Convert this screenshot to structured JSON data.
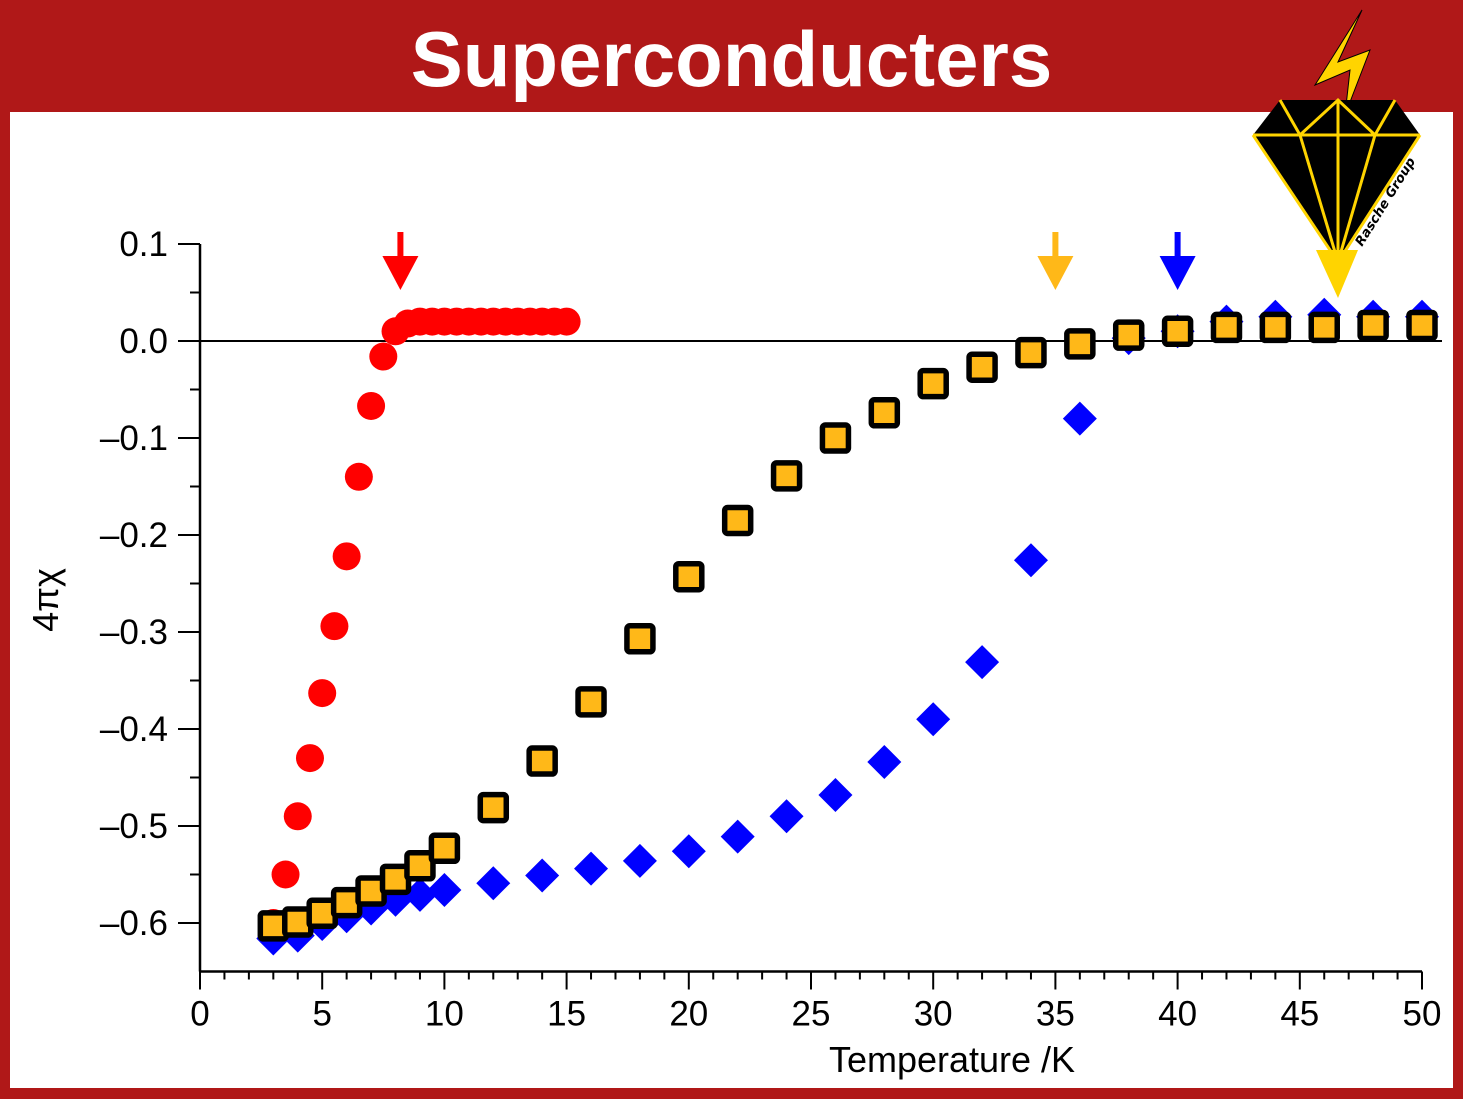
{
  "header": {
    "title": "Superconducters"
  },
  "logo": {
    "text": "Rasche Group",
    "icon": "lightning-diamond-icon"
  },
  "colors": {
    "frame": "#b01818",
    "red": "#ff0000",
    "blue": "#0000ff",
    "orange": "#ffb818",
    "black": "#000000",
    "logo_yellow": "#ffd400"
  },
  "chart_data": {
    "type": "scatter",
    "xlabel": "Temperature /K",
    "ylabel": "4πχ",
    "xlim": [
      0,
      50
    ],
    "ylim": [
      -0.65,
      0.1
    ],
    "xticks": [
      0,
      5,
      10,
      15,
      20,
      25,
      30,
      35,
      40,
      45,
      50
    ],
    "xtick_labels": [
      "0",
      "5",
      "10",
      "15",
      "20",
      "25",
      "30",
      "35",
      "40",
      "45",
      "50"
    ],
    "yticks": [
      0.1,
      0.0,
      -0.1,
      -0.2,
      -0.3,
      -0.4,
      -0.5,
      -0.6
    ],
    "ytick_labels": [
      "0.1",
      "0.0",
      "–0.1",
      "–0.2",
      "–0.3",
      "–0.4",
      "–0.5",
      "–0.6"
    ],
    "reference_line_y": 0,
    "series": [
      {
        "marker": "circle",
        "color": "#ff0000",
        "x": [
          3,
          3.5,
          4,
          4.5,
          5,
          5.5,
          6,
          6.5,
          7,
          7.5,
          8,
          8.5,
          9,
          9.5,
          10,
          10.5,
          11,
          11.5,
          12,
          12.5,
          13,
          13.5,
          14,
          14.5,
          15
        ],
        "y": [
          -0.6,
          -0.55,
          -0.49,
          -0.43,
          -0.363,
          -0.294,
          -0.222,
          -0.14,
          -0.067,
          -0.016,
          0.01,
          0.018,
          0.02,
          0.02,
          0.02,
          0.02,
          0.02,
          0.02,
          0.02,
          0.02,
          0.02,
          0.02,
          0.02,
          0.02,
          0.02
        ]
      },
      {
        "marker": "diamond",
        "color": "#0000ff",
        "x": [
          3,
          4,
          5,
          6,
          7,
          8,
          9,
          10,
          12,
          14,
          16,
          18,
          20,
          22,
          24,
          26,
          28,
          30,
          32,
          34,
          36,
          38,
          40,
          42,
          44,
          46,
          48,
          50
        ],
        "y": [
          -0.616,
          -0.613,
          -0.601,
          -0.593,
          -0.585,
          -0.576,
          -0.571,
          -0.566,
          -0.559,
          -0.551,
          -0.544,
          -0.536,
          -0.526,
          -0.511,
          -0.49,
          -0.468,
          -0.434,
          -0.39,
          -0.331,
          -0.226,
          -0.08,
          0.003,
          0.01,
          0.02,
          0.025,
          0.027,
          0.025,
          0.025
        ]
      },
      {
        "marker": "square",
        "color": "#ffb818",
        "edge": "#000000",
        "x": [
          3,
          4,
          5,
          6,
          7,
          8,
          9,
          10,
          12,
          14,
          16,
          18,
          20,
          22,
          24,
          26,
          28,
          30,
          32,
          34,
          36,
          38,
          40,
          42,
          44,
          46,
          48,
          50
        ],
        "y": [
          -0.603,
          -0.599,
          -0.59,
          -0.579,
          -0.567,
          -0.555,
          -0.541,
          -0.523,
          -0.481,
          -0.433,
          -0.372,
          -0.307,
          -0.243,
          -0.185,
          -0.139,
          -0.1,
          -0.074,
          -0.044,
          -0.027,
          -0.012,
          -0.003,
          0.006,
          0.01,
          0.014,
          0.014,
          0.014,
          0.016,
          0.016
        ]
      }
    ],
    "arrows": [
      {
        "x": 8.2,
        "color": "#ff0000"
      },
      {
        "x": 35.0,
        "color": "#ffb818"
      },
      {
        "x": 40.0,
        "color": "#0000ff"
      }
    ]
  }
}
